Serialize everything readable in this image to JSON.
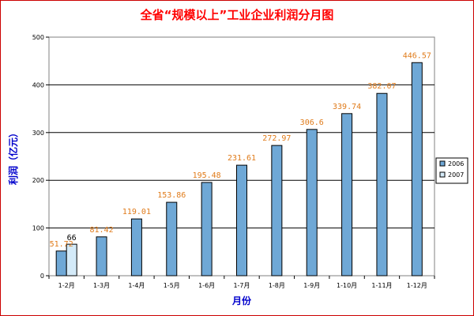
{
  "colors": {
    "frame": "#cc0000",
    "title": "#ff0000",
    "axis_title": "#0000cc",
    "label_2006": "#e07b1a",
    "label_2007": "#000000"
  },
  "chart_data": {
    "type": "bar",
    "title": "全省“规模以上”工业企业利润分月图",
    "xlabel": "月份",
    "ylabel": "利润（亿元）",
    "categories": [
      "1-2月",
      "1-3月",
      "1-4月",
      "1-5月",
      "1-6月",
      "1-7月",
      "1-8月",
      "1-9月",
      "1-10月",
      "1-11月",
      "1-12月"
    ],
    "series": [
      {
        "name": "2006",
        "color": "#6fa8d6",
        "values": [
          51.72,
          81.42,
          119.01,
          153.86,
          195.48,
          231.61,
          272.97,
          306.6,
          339.74,
          382.07,
          446.57
        ],
        "labels": [
          "51.72",
          "81.42",
          "119.01",
          "153.86",
          "195.48",
          "231.61",
          "272.97",
          "306.6",
          "339.74",
          "382.07",
          "446.57"
        ]
      },
      {
        "name": "2007",
        "color": "#d4eaf8",
        "values": [
          66,
          null,
          null,
          null,
          null,
          null,
          null,
          null,
          null,
          null,
          null
        ],
        "labels": [
          "66",
          "",
          "",
          "",
          "",
          "",
          "",
          "",
          "",
          "",
          ""
        ]
      }
    ],
    "ylim": [
      0,
      500
    ],
    "yticks": [
      0,
      100,
      200,
      300,
      400,
      500
    ],
    "grid": true,
    "legend": "right"
  }
}
